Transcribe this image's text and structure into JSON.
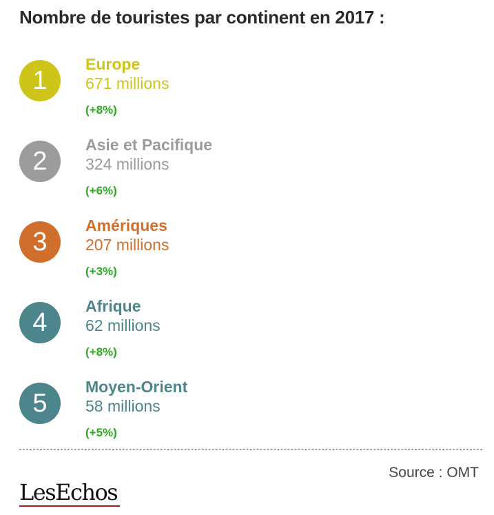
{
  "title": "Nombre de touristes par continent en 2017 :",
  "colors": {
    "europe": "#cfc51a",
    "asie": "#9b9b9b",
    "ameriques": "#d06f2c",
    "afrique": "#4c858c",
    "moyen_orient": "#4c858c",
    "change": "#2ea820"
  },
  "chart_data": {
    "type": "table",
    "title": "Nombre de touristes par continent en 2017 :",
    "rows": [
      {
        "rank": "1",
        "continent": "Europe",
        "value_label": "671 millions",
        "value": 671,
        "change": "(+8%)",
        "color": "#cfc51a"
      },
      {
        "rank": "2",
        "continent": "Asie et Pacifique",
        "value_label": "324 millions",
        "value": 324,
        "change": "(+6%)",
        "color": "#9b9b9b"
      },
      {
        "rank": "3",
        "continent": "Amériques",
        "value_label": "207 millions",
        "value": 207,
        "change": "(+3%)",
        "color": "#d06f2c"
      },
      {
        "rank": "4",
        "continent": "Afrique",
        "value_label": "62 millions",
        "value": 62,
        "change": "(+8%)",
        "color": "#4c858c"
      },
      {
        "rank": "5",
        "continent": "Moyen-Orient",
        "value_label": "58 millions",
        "value": 58,
        "change": "(+5%)",
        "color": "#4c858c"
      }
    ]
  },
  "source": "Source : OMT",
  "logo": "LesEchos"
}
